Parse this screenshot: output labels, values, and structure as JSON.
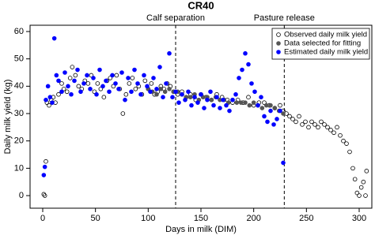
{
  "chart_data": {
    "type": "scatter",
    "title": "CR40",
    "x_label": "Days in milk (DIM)",
    "y_label": "Daily milk yield (kg)",
    "xlim": [
      -12,
      312
    ],
    "ylim": [
      -4.6,
      62.3
    ],
    "xticks": [
      0,
      50,
      100,
      150,
      200,
      250,
      300
    ],
    "yticks": [
      0,
      10,
      20,
      30,
      40,
      50,
      60
    ],
    "legend": "top-right",
    "annotations": [
      {
        "x": 126,
        "label": "Calf separation"
      },
      {
        "x": 229,
        "label": "Pasture release"
      }
    ],
    "series": [
      {
        "name": "Observed daily milk yield",
        "color": "#000000",
        "filled": false,
        "x": [
          1,
          2,
          3,
          4,
          6,
          8,
          10,
          12,
          15,
          18,
          20,
          23,
          26,
          28,
          31,
          34,
          37,
          40,
          43,
          46,
          49,
          52,
          55,
          58,
          61,
          64,
          67,
          70,
          73,
          76,
          79,
          82,
          85,
          88,
          91,
          94,
          97,
          100,
          103,
          106,
          109,
          112,
          115,
          118,
          121,
          124,
          128,
          132,
          136,
          140,
          145,
          150,
          155,
          160,
          165,
          170,
          175,
          180,
          185,
          190,
          195,
          200,
          205,
          210,
          215,
          220,
          225,
          228,
          231,
          234,
          237,
          240,
          243,
          246,
          249,
          252,
          255,
          258,
          261,
          264,
          267,
          270,
          273,
          276,
          279,
          282,
          285,
          288,
          291,
          294,
          296,
          298,
          300,
          302,
          304,
          306,
          307
        ],
        "values": [
          0.5,
          0,
          12.5,
          34,
          33,
          35,
          36,
          34,
          37,
          41,
          39,
          38,
          43,
          47,
          44,
          40,
          39,
          42,
          41,
          44,
          38,
          41,
          39,
          36,
          42,
          43,
          40,
          44,
          39,
          30,
          37,
          41,
          43,
          39,
          40,
          37,
          42,
          39,
          41,
          37,
          38,
          40,
          39,
          41,
          40,
          38,
          37,
          38,
          36,
          37,
          35,
          37,
          36,
          35,
          37,
          36,
          35,
          34,
          35,
          34,
          36,
          33,
          34,
          34,
          33,
          32,
          33,
          31,
          30,
          29,
          28,
          27,
          29,
          26,
          27,
          25,
          27,
          26,
          25,
          27,
          26,
          25,
          24,
          23,
          25,
          22,
          20,
          19,
          16,
          10,
          6,
          1,
          0,
          3,
          5,
          0,
          9
        ]
      },
      {
        "name": "Data selected for fitting",
        "color": "#555555",
        "filled": true,
        "x": [
          100,
          104,
          108,
          112,
          116,
          120,
          124,
          128,
          132,
          136,
          140,
          144,
          148,
          152,
          156,
          160,
          164,
          168,
          172,
          176,
          180,
          184,
          188,
          192,
          196,
          200,
          204,
          208,
          212,
          216,
          220,
          224,
          228
        ],
        "values": [
          39,
          38,
          37,
          39,
          38,
          39,
          38,
          38,
          37,
          36,
          36,
          37,
          35,
          36,
          36,
          35,
          36,
          35,
          35,
          34,
          35,
          34,
          34,
          34,
          33,
          34,
          33,
          32,
          33,
          33,
          32,
          31,
          30
        ]
      },
      {
        "name": "Estimated daily milk yield",
        "color": "#0000ff",
        "filled": true,
        "x": [
          1,
          2,
          3,
          5,
          7,
          9,
          11,
          13,
          15,
          18,
          21,
          24,
          27,
          30,
          33,
          36,
          39,
          42,
          45,
          48,
          51,
          54,
          57,
          60,
          63,
          66,
          69,
          72,
          75,
          78,
          81,
          84,
          87,
          90,
          93,
          96,
          99,
          102,
          105,
          108,
          111,
          114,
          117,
          120,
          123,
          126,
          129,
          132,
          135,
          138,
          141,
          144,
          147,
          150,
          153,
          156,
          159,
          162,
          165,
          168,
          171,
          174,
          177,
          180,
          183,
          186,
          189,
          192,
          195,
          198,
          201,
          204,
          207,
          210,
          213,
          216,
          219,
          222,
          225,
          228
        ],
        "values": [
          7.5,
          10.5,
          35,
          40,
          36,
          34,
          57.5,
          44,
          42,
          38,
          45,
          40,
          37,
          42,
          46,
          38,
          41,
          44,
          39,
          43,
          37,
          46,
          40,
          42,
          38,
          44,
          41,
          39,
          45,
          35,
          43,
          38,
          46,
          41,
          37,
          44,
          40,
          38,
          43,
          39,
          47,
          36,
          41,
          52,
          36,
          38,
          34,
          37,
          35,
          38,
          33,
          36,
          34,
          37,
          32,
          35,
          38,
          33,
          36,
          32,
          35,
          33,
          31,
          35,
          37,
          43,
          46,
          52,
          48,
          41,
          38,
          33,
          36,
          29,
          27,
          31,
          26,
          28,
          31,
          12
        ]
      }
    ]
  }
}
